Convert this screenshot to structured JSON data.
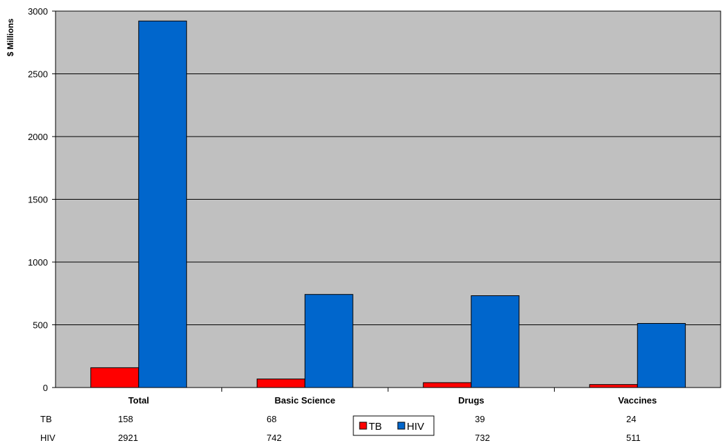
{
  "chart_data": {
    "type": "bar",
    "ylabel": "$ Millions",
    "ylim": [
      0,
      3000
    ],
    "yticks": [
      0,
      500,
      1000,
      1500,
      2000,
      2500,
      3000
    ],
    "categories": [
      "Total",
      "Basic Science",
      "Drugs",
      "Vaccines"
    ],
    "series": [
      {
        "name": "TB",
        "color": "#ff0000",
        "values": [
          158,
          68,
          39,
          24
        ]
      },
      {
        "name": "HIV",
        "color": "#0066cc",
        "values": [
          2921,
          742,
          732,
          511
        ]
      }
    ],
    "grid": true,
    "plot_background": "#c0c0c0",
    "legend": "bottom-center",
    "data_table": true
  }
}
